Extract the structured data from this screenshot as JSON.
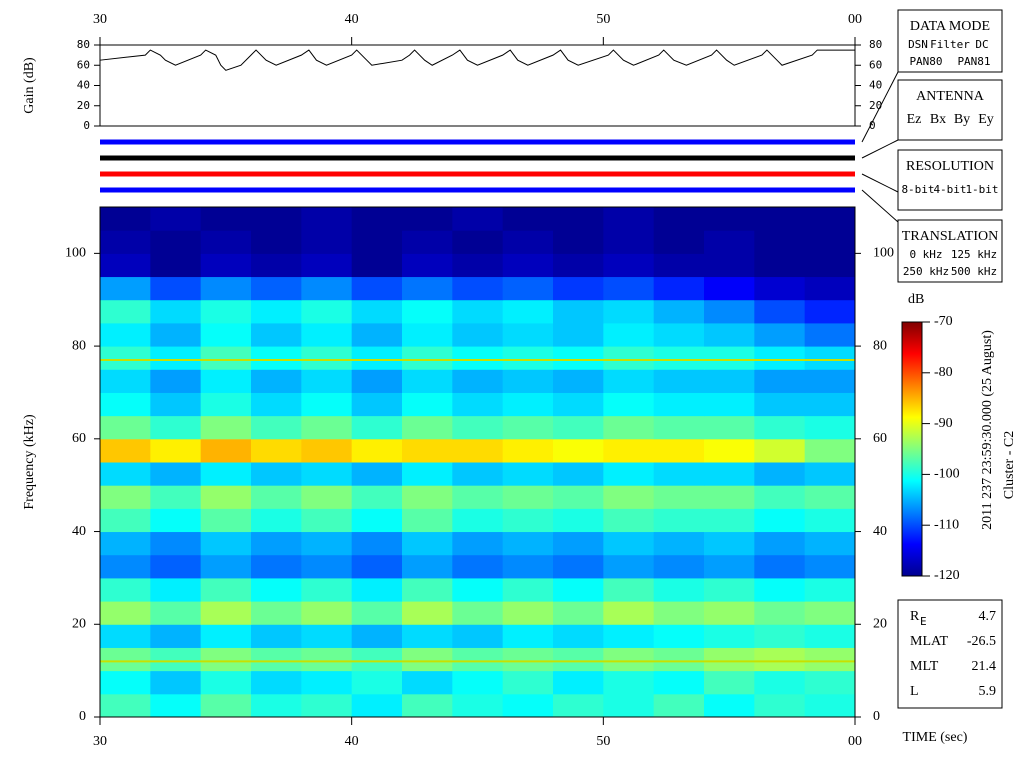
{
  "chart_data": [
    {
      "type": "line",
      "ylabel": "Gain (dB)",
      "xlim": [
        30,
        60
      ],
      "xticks": [
        30,
        40,
        50,
        {
          "value": 60,
          "label": "00"
        }
      ],
      "ylim": [
        0,
        80
      ],
      "yticks": [
        0,
        20,
        40,
        60,
        80
      ],
      "series": [
        {
          "color": "#000000",
          "x": [
            30,
            31.8,
            32,
            32.4,
            32.6,
            33,
            34,
            34.2,
            34.6,
            34.8,
            35,
            35.6,
            36,
            36.2,
            36.6,
            37,
            38,
            38.3,
            38.6,
            39,
            40,
            40.2,
            40.6,
            40.8,
            42,
            42.3,
            42.5,
            42.9,
            43.2,
            44,
            44.3,
            44.6,
            45,
            46,
            46.3,
            46.6,
            47,
            48,
            48.3,
            48.6,
            49,
            50.2,
            50.4,
            50.8,
            51.2,
            52.2,
            52.4,
            52.8,
            53.3,
            54.3,
            54.5,
            54.9,
            55.2,
            56.3,
            56.5,
            56.9,
            57.1,
            58.3,
            58.5,
            58.9,
            60
          ],
          "values": [
            65,
            70,
            75,
            70,
            65,
            60,
            70,
            75,
            70,
            60,
            55,
            60,
            70,
            75,
            65,
            60,
            70,
            75,
            65,
            60,
            70,
            75,
            65,
            60,
            65,
            70,
            75,
            65,
            60,
            70,
            75,
            65,
            60,
            70,
            75,
            65,
            60,
            70,
            75,
            65,
            60,
            70,
            75,
            65,
            60,
            70,
            75,
            65,
            60,
            70,
            75,
            65,
            60,
            70,
            75,
            65,
            60,
            70,
            75,
            75,
            75
          ]
        }
      ]
    },
    {
      "type": "heatmap",
      "ylabel": "Frequency (kHz)",
      "xlabel": "TIME (sec)",
      "xlim": [
        30,
        60
      ],
      "xticks": [
        30,
        40,
        50,
        {
          "value": 60,
          "label": "00"
        }
      ],
      "ylim": [
        0,
        110
      ],
      "yticks": [
        0,
        20,
        40,
        60,
        80,
        100
      ],
      "x_edges": [
        30,
        32,
        34,
        36,
        38,
        40,
        42,
        44,
        46,
        48,
        50,
        52,
        54,
        56,
        58,
        60
      ],
      "y_edges": [
        0,
        5,
        10,
        15,
        20,
        25,
        30,
        35,
        40,
        45,
        50,
        55,
        60,
        65,
        70,
        75,
        80,
        85,
        90,
        95,
        100,
        105,
        110
      ],
      "values": [
        [
          -98,
          -101,
          -97,
          -100,
          -99,
          -102,
          -98,
          -100,
          -101,
          -99,
          -100,
          -98,
          -101,
          -99,
          -100
        ],
        [
          -101,
          -104,
          -100,
          -103,
          -102,
          -100,
          -103,
          -101,
          -99,
          -102,
          -100,
          -101,
          -98,
          -100,
          -99
        ],
        [
          -96,
          -98,
          -95,
          -97,
          -96,
          -98,
          -95,
          -97,
          -96,
          -97,
          -95,
          -96,
          -94,
          -93,
          -94
        ],
        [
          -103,
          -105,
          -102,
          -104,
          -103,
          -105,
          -103,
          -104,
          -102,
          -103,
          -102,
          -101,
          -100,
          -99,
          -100
        ],
        [
          -94,
          -97,
          -93,
          -96,
          -94,
          -97,
          -93,
          -96,
          -94,
          -96,
          -93,
          -95,
          -94,
          -96,
          -95
        ],
        [
          -99,
          -102,
          -98,
          -101,
          -99,
          -102,
          -98,
          -101,
          -99,
          -101,
          -98,
          -100,
          -99,
          -101,
          -100
        ],
        [
          -107,
          -109,
          -106,
          -108,
          -107,
          -109,
          -106,
          -108,
          -107,
          -108,
          -106,
          -107,
          -106,
          -108,
          -107
        ],
        [
          -105,
          -107,
          -104,
          -106,
          -105,
          -107,
          -104,
          -106,
          -105,
          -106,
          -104,
          -105,
          -104,
          -106,
          -105
        ],
        [
          -98,
          -101,
          -97,
          -100,
          -98,
          -101,
          -97,
          -100,
          -99,
          -100,
          -98,
          -99,
          -99,
          -101,
          -100
        ],
        [
          -95,
          -98,
          -94,
          -97,
          -95,
          -98,
          -95,
          -97,
          -96,
          -97,
          -95,
          -96,
          -96,
          -98,
          -97
        ],
        [
          -103,
          -105,
          -102,
          -104,
          -103,
          -105,
          -102,
          -104,
          -103,
          -104,
          -102,
          -103,
          -103,
          -105,
          -104
        ],
        [
          -86,
          -88,
          -85,
          -87,
          -86,
          -88,
          -87,
          -87,
          -88,
          -89,
          -88,
          -88,
          -89,
          -91,
          -95
        ],
        [
          -96,
          -99,
          -95,
          -98,
          -96,
          -99,
          -96,
          -98,
          -97,
          -98,
          -96,
          -97,
          -97,
          -99,
          -100
        ],
        [
          -101,
          -104,
          -100,
          -103,
          -101,
          -104,
          -101,
          -103,
          -102,
          -103,
          -101,
          -102,
          -102,
          -104,
          -104
        ],
        [
          -103,
          -106,
          -102,
          -105,
          -103,
          -106,
          -103,
          -105,
          -104,
          -105,
          -103,
          -104,
          -104,
          -106,
          -106
        ],
        [
          -99,
          -102,
          -98,
          -101,
          -99,
          -102,
          -99,
          -101,
          -100,
          -101,
          -99,
          -100,
          -100,
          -102,
          -103
        ],
        [
          -102,
          -105,
          -101,
          -104,
          -102,
          -105,
          -102,
          -104,
          -103,
          -104,
          -102,
          -103,
          -104,
          -106,
          -108
        ],
        [
          -99,
          -103,
          -100,
          -102,
          -100,
          -103,
          -101,
          -103,
          -102,
          -104,
          -103,
          -105,
          -107,
          -110,
          -112
        ],
        [
          -106,
          -110,
          -107,
          -109,
          -107,
          -110,
          -108,
          -110,
          -109,
          -111,
          -110,
          -112,
          -114,
          -116,
          -117
        ],
        [
          -117,
          -119,
          -117,
          -118,
          -117,
          -119,
          -117,
          -118,
          -117,
          -118,
          -117,
          -118,
          -118,
          -119,
          -119
        ],
        [
          -118,
          -119,
          -118,
          -119,
          -118,
          -119,
          -118,
          -119,
          -118,
          -119,
          -118,
          -119,
          -118,
          -119,
          -119
        ],
        [
          -119,
          -118,
          -119,
          -119,
          -118,
          -119,
          -119,
          -118,
          -119,
          -119,
          -118,
          -119,
          -119,
          -119,
          -119
        ]
      ],
      "lines": [
        {
          "value": 77,
          "color": "#c8e000"
        },
        {
          "value": 12,
          "color": "#c8e000"
        }
      ],
      "colorbar": {
        "label": "dB",
        "clim": [
          -120,
          -70
        ],
        "ticks": [
          -70,
          -80,
          -90,
          -100,
          -110,
          -120
        ]
      }
    }
  ],
  "status_bars": [
    {
      "color": "#0000ff"
    },
    {
      "color": "#000000"
    },
    {
      "color": "#ff0000"
    },
    {
      "color": "#0000ff"
    }
  ],
  "panels": [
    {
      "title": "DATA MODE",
      "rows": [
        [
          {
            "text": "DSN",
            "color": "#ff0000"
          },
          {
            "text": "Filter",
            "color": "#00c000"
          },
          {
            "text": "DC",
            "color": "#0000ff"
          }
        ],
        [
          {
            "text": "PAN80",
            "color": "#000000"
          },
          {
            "text": "PAN81",
            "color": "#00c8c8"
          }
        ]
      ]
    },
    {
      "title": "ANTENNA",
      "rows": [
        [
          {
            "text": "Ez",
            "color": "#ff0000"
          },
          {
            "text": "Bx",
            "color": "#00c000"
          },
          {
            "text": "By",
            "color": "#0000ff"
          },
          {
            "text": "Ey",
            "color": "#000000"
          }
        ]
      ]
    },
    {
      "title": "RESOLUTION",
      "rows": [
        [
          {
            "text": "8-bit",
            "color": "#ff0000"
          },
          {
            "text": "4-bit",
            "color": "#00c000"
          },
          {
            "text": "1-bit",
            "color": "#0000ff"
          }
        ]
      ]
    },
    {
      "title": "TRANSLATION",
      "rows": [
        [
          {
            "text": "0 kHz",
            "color": "#ff0000"
          },
          {
            "text": "125 kHz",
            "color": "#00c000"
          }
        ],
        [
          {
            "text": "250 kHz",
            "color": "#0000ff"
          },
          {
            "text": "500 kHz",
            "color": "#000000"
          }
        ]
      ]
    }
  ],
  "timestamp": "2011 237 23:59:30.000 (25 August)",
  "spacecraft": "Cluster - C2",
  "info": [
    {
      "label": "R",
      "sub": "E",
      "value": 4.7
    },
    {
      "label": "MLAT",
      "value": -26.5
    },
    {
      "label": "MLT",
      "value": 21.4
    },
    {
      "label": "L",
      "value": 5.9
    }
  ]
}
